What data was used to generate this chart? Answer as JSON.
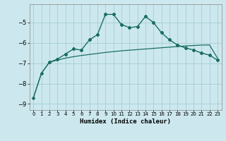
{
  "xlabel": "Humidex (Indice chaleur)",
  "bg_color": "#cce8ee",
  "line_color": "#1a6e62",
  "grid_color": "#aad0d8",
  "x_values": [
    0,
    1,
    2,
    3,
    4,
    5,
    6,
    7,
    8,
    9,
    10,
    11,
    12,
    13,
    14,
    15,
    16,
    17,
    18,
    19,
    20,
    21,
    22,
    23
  ],
  "line1": [
    -8.7,
    -7.5,
    -6.95,
    -6.85,
    -6.75,
    -6.68,
    -6.62,
    -6.57,
    -6.52,
    -6.47,
    -6.43,
    -6.39,
    -6.36,
    -6.33,
    -6.3,
    -6.27,
    -6.24,
    -6.21,
    -6.18,
    -6.15,
    -6.13,
    -6.11,
    -6.1,
    -6.75
  ],
  "line2_x": [
    0,
    1,
    2,
    3,
    4,
    5,
    6,
    7,
    8,
    9,
    10,
    11,
    12,
    13,
    14,
    15,
    16,
    17,
    18,
    19,
    20,
    21,
    22,
    23
  ],
  "line2": [
    -8.7,
    -7.5,
    -6.95,
    -6.8,
    -6.55,
    -6.3,
    -6.35,
    -5.85,
    -5.6,
    -4.6,
    -4.6,
    -5.1,
    -5.25,
    -5.2,
    -4.7,
    -5.0,
    -5.5,
    -5.85,
    -6.1,
    -6.25,
    -6.35,
    -6.5,
    -6.6,
    -6.85
  ],
  "line3_x": [
    2,
    3,
    4,
    5,
    6,
    7,
    8,
    9,
    10,
    11,
    12,
    13,
    14,
    15,
    16,
    17,
    18,
    19,
    20,
    21,
    22,
    23
  ],
  "line3": [
    -6.95,
    -6.8,
    -6.55,
    -6.3,
    -6.35,
    -5.85,
    -5.6,
    -4.6,
    -4.6,
    -5.1,
    -5.25,
    -5.2,
    -4.7,
    -5.0,
    -5.5,
    -5.85,
    -6.1,
    -6.25,
    -6.35,
    -6.5,
    -6.6,
    -6.85
  ],
  "ylim": [
    -9.3,
    -4.1
  ],
  "xlim": [
    -0.5,
    23.5
  ],
  "yticks": [
    -9,
    -8,
    -7,
    -6,
    -5
  ],
  "xtick_labels": [
    "0",
    "1",
    "2",
    "3",
    "4",
    "5",
    "6",
    "7",
    "8",
    "9",
    "10",
    "11",
    "12",
    "13",
    "14",
    "15",
    "16",
    "17",
    "18",
    "19",
    "20",
    "21",
    "22",
    "23"
  ]
}
